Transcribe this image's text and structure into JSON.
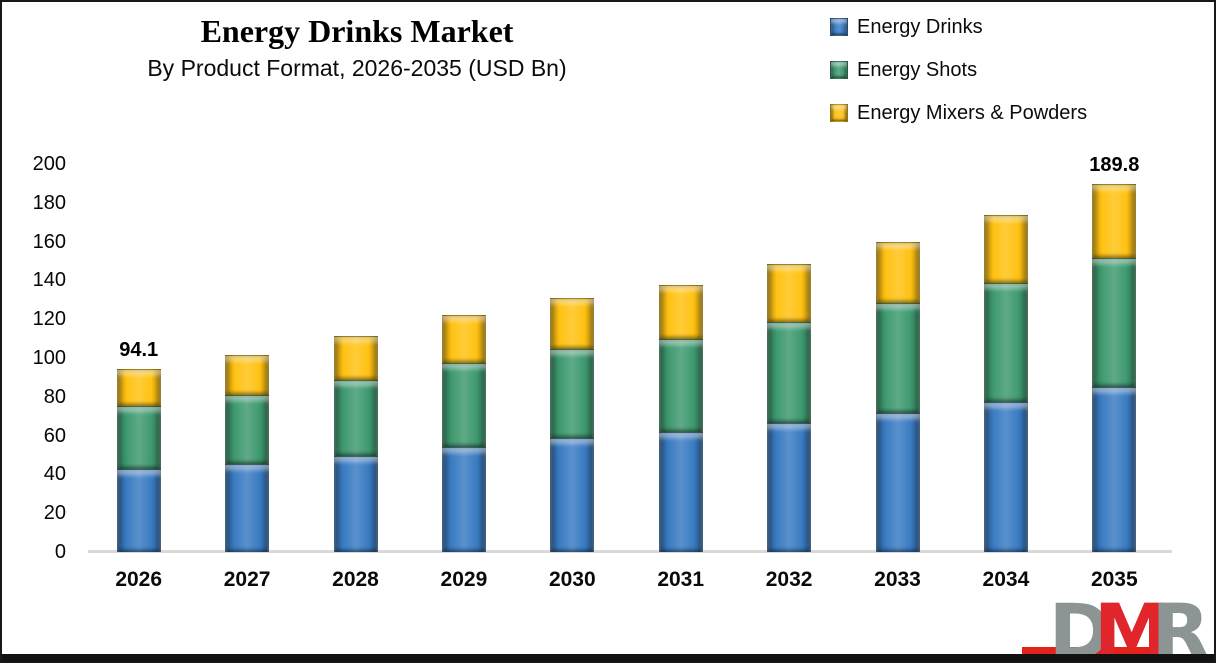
{
  "title": "Energy Drinks Market",
  "subtitle": "By Product Format, 2026-2035 (USD Bn)",
  "legend": [
    {
      "label": "Energy Drinks",
      "color": "#3A7CC3"
    },
    {
      "label": "Energy Shots",
      "color": "#3F9A70"
    },
    {
      "label": "Energy Mixers & Powders",
      "color": "#FFC213"
    }
  ],
  "chart_data": {
    "type": "bar",
    "stacked": true,
    "title": "Energy Drinks Market",
    "subtitle": "By Product Format, 2026-2035 (USD Bn)",
    "categories": [
      "2026",
      "2027",
      "2028",
      "2029",
      "2030",
      "2031",
      "2032",
      "2033",
      "2034",
      "2035"
    ],
    "series": [
      {
        "name": "Energy Drinks",
        "color": "#3A7CC3",
        "values": [
          42.8,
          45.3,
          49.5,
          54.2,
          59.0,
          62.1,
          66.3,
          71.8,
          77.4,
          85.1
        ]
      },
      {
        "name": "Energy Shots",
        "color": "#3F9A70",
        "values": [
          32.6,
          35.6,
          39.2,
          43.2,
          45.8,
          47.8,
          52.5,
          56.6,
          61.2,
          66.7
        ]
      },
      {
        "name": "Energy Mixers & Powders",
        "color": "#FFC213",
        "values": [
          18.7,
          20.6,
          22.7,
          24.8,
          26.0,
          27.7,
          29.8,
          31.4,
          34.9,
          38.0
        ]
      }
    ],
    "totals_labeled": {
      "2026": "94.1",
      "2035": "189.8"
    },
    "y_ticks": [
      0,
      20,
      40,
      60,
      80,
      100,
      120,
      140,
      160,
      180,
      200
    ],
    "ylim": [
      0,
      200
    ],
    "xlabel": "",
    "ylabel": "",
    "grid": false,
    "legend_position": "top-right",
    "axis_line_color": "#D9D9D9"
  },
  "watermark": {
    "letters": [
      {
        "char": "D",
        "color": "#8C9594"
      },
      {
        "char": "M",
        "color": "#E0262B"
      },
      {
        "char": "R",
        "color": "#8C9594"
      }
    ],
    "underline_color": "#E32219"
  }
}
